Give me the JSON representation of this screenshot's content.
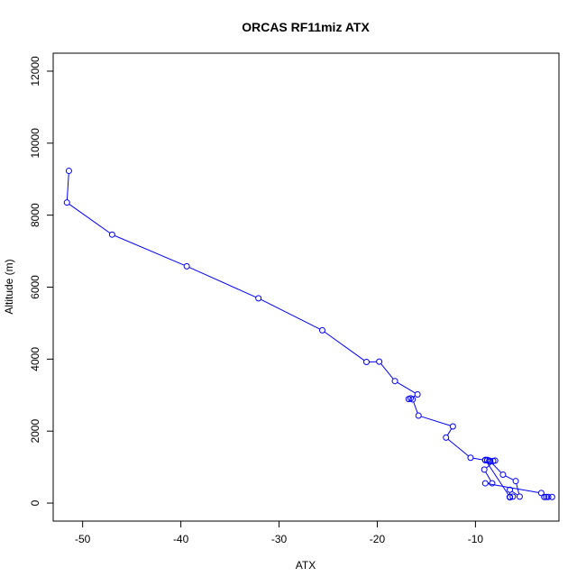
{
  "chart_data": {
    "type": "line",
    "title": "ORCAS RF11miz ATX",
    "xlabel": "ATX",
    "ylabel": "Altitude (m)",
    "xlim": [
      -53,
      -1.5
    ],
    "ylim": [
      -500,
      12500
    ],
    "xticks": [
      -50,
      -40,
      -30,
      -20,
      -10
    ],
    "yticks": [
      0,
      2000,
      4000,
      6000,
      8000,
      10000,
      12000
    ],
    "grid": false,
    "line_color": "#0000ff",
    "marker": "open-circle",
    "series": [
      {
        "x": [
          -51.4,
          -51.6,
          -47.0,
          -39.4,
          -32.1,
          -25.6,
          -21.1,
          -19.8,
          -18.2,
          -15.9,
          -16.6,
          -16.8,
          -16.4,
          -15.8,
          -12.3,
          -13.0,
          -10.5,
          -9.0,
          -8.5,
          -7.2,
          -5.9,
          -5.5,
          -6.5,
          -6.5,
          -6.5,
          -6.2,
          -6.5,
          -9.0,
          -8.8,
          -8.6,
          -8.8,
          -8.2,
          -8.0,
          -9.1,
          -8.3,
          -9.0,
          -3.3,
          -3.0,
          -2.8,
          -2.6,
          -2.2
        ],
        "y": [
          9230,
          8350,
          7460,
          6580,
          5690,
          4800,
          3920,
          3930,
          3390,
          3020,
          2910,
          2890,
          2880,
          2430,
          2130,
          1820,
          1260,
          1190,
          1160,
          790,
          610,
          180,
          370,
          170,
          160,
          180,
          170,
          1200,
          1200,
          1180,
          1190,
          1170,
          1180,
          930,
          550,
          550,
          280,
          170,
          170,
          170,
          170
        ]
      }
    ]
  }
}
